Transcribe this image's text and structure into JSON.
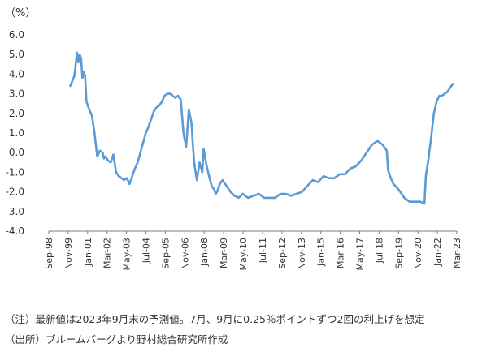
{
  "chart_data": {
    "type": "line",
    "ylabel": "（%）",
    "ylim": [
      -4.0,
      6.0
    ],
    "ytick_labels": [
      "6.0",
      "5.0",
      "4.0",
      "3.0",
      "2.0",
      "1.0",
      "0.0",
      "-1.0",
      "-2.0",
      "-3.0",
      "-4.0"
    ],
    "x_tick_labels": [
      "Sep-98",
      "Nov-99",
      "Jan-01",
      "Mar-02",
      "May-03",
      "Jul-04",
      "Sep-05",
      "Nov-06",
      "Jan-08",
      "Mar-09",
      "May-10",
      "Jul-11",
      "Sep-12",
      "Nov-13",
      "Jan-15",
      "Mar-16",
      "May-17",
      "Jul-18",
      "Sep-19",
      "Nov-20",
      "Jan-22",
      "Mar-23"
    ],
    "x_range": [
      "1998-09",
      "2023-12"
    ],
    "grid": false,
    "legend": "none",
    "series_color": "#5B9BD5",
    "series": [
      {
        "x": [
          "2000-01",
          "2000-04",
          "2000-06",
          "2000-07",
          "2000-08",
          "2000-09",
          "2000-10",
          "2000-11",
          "2000-12",
          "2001-01",
          "2001-03",
          "2001-05",
          "2001-07",
          "2001-09",
          "2001-11",
          "2002-01",
          "2002-02",
          "2002-03",
          "2002-05",
          "2002-07",
          "2002-09",
          "2002-11",
          "2003-01",
          "2003-03",
          "2003-05",
          "2003-07",
          "2003-09",
          "2003-11",
          "2004-01",
          "2004-03",
          "2004-05",
          "2004-07",
          "2004-09",
          "2004-11",
          "2005-01",
          "2005-03",
          "2005-05",
          "2005-07",
          "2005-09",
          "2005-11",
          "2006-01",
          "2006-03",
          "2006-05",
          "2006-07",
          "2006-09",
          "2006-11",
          "2007-01",
          "2007-03",
          "2007-05",
          "2007-07",
          "2007-08",
          "2007-09",
          "2007-11",
          "2008-01",
          "2008-03",
          "2008-04",
          "2008-06",
          "2008-08",
          "2008-10",
          "2008-12",
          "2009-01",
          "2009-02",
          "2009-04",
          "2009-06",
          "2009-09",
          "2009-12",
          "2010-03",
          "2010-06",
          "2010-09",
          "2011-01",
          "2011-05",
          "2011-09",
          "2012-01",
          "2012-05",
          "2012-09",
          "2013-01",
          "2013-05",
          "2013-09",
          "2014-01",
          "2014-05",
          "2014-09",
          "2015-01",
          "2015-05",
          "2015-09",
          "2016-01",
          "2016-05",
          "2016-09",
          "2017-01",
          "2017-05",
          "2017-09",
          "2018-01",
          "2018-05",
          "2018-09",
          "2019-01",
          "2019-05",
          "2019-08",
          "2019-09",
          "2019-11",
          "2020-01",
          "2020-05",
          "2020-09",
          "2021-01",
          "2021-05",
          "2021-09",
          "2021-12",
          "2022-01",
          "2022-03",
          "2022-05",
          "2022-07",
          "2022-09",
          "2022-11",
          "2023-01",
          "2023-03",
          "2023-05",
          "2023-07",
          "2023-09"
        ],
        "values": [
          3.4,
          3.9,
          5.1,
          4.6,
          5.0,
          4.8,
          3.8,
          4.1,
          3.9,
          2.6,
          2.2,
          1.9,
          1.0,
          -0.2,
          0.1,
          0.0,
          -0.3,
          -0.2,
          -0.4,
          -0.5,
          -0.1,
          -1.0,
          -1.2,
          -1.3,
          -1.4,
          -1.3,
          -1.6,
          -1.2,
          -0.8,
          -0.5,
          0.0,
          0.5,
          1.0,
          1.3,
          1.7,
          2.1,
          2.3,
          2.4,
          2.6,
          2.9,
          3.0,
          3.0,
          2.9,
          2.8,
          2.9,
          2.7,
          1.0,
          0.3,
          2.2,
          1.5,
          0.4,
          -0.5,
          -1.4,
          -0.5,
          -1.0,
          0.2,
          -0.6,
          -1.2,
          -1.7,
          -1.9,
          -2.1,
          -2.0,
          -1.6,
          -1.4,
          -1.7,
          -2.0,
          -2.2,
          -2.3,
          -2.1,
          -2.3,
          -2.2,
          -2.1,
          -2.3,
          -2.3,
          -2.3,
          -2.1,
          -2.1,
          -2.2,
          -2.1,
          -2.0,
          -1.7,
          -1.4,
          -1.5,
          -1.2,
          -1.3,
          -1.3,
          -1.1,
          -1.1,
          -0.8,
          -0.7,
          -0.4,
          0.0,
          0.4,
          0.6,
          0.4,
          0.1,
          -0.9,
          -1.3,
          -1.6,
          -1.9,
          -2.3,
          -2.5,
          -2.5,
          -2.5,
          -2.6,
          -1.2,
          -0.3,
          0.8,
          2.0,
          2.6,
          2.9,
          2.9,
          3.0,
          3.1,
          3.3,
          3.5
        ]
      }
    ]
  },
  "notes": {
    "note1": "（注）最新値は2023年9月末の予測値。7月、9月に0.25％ポイントずつ2回の利上げを想定",
    "note2": "（出所）ブルームバーグより野村総合研究所作成"
  }
}
